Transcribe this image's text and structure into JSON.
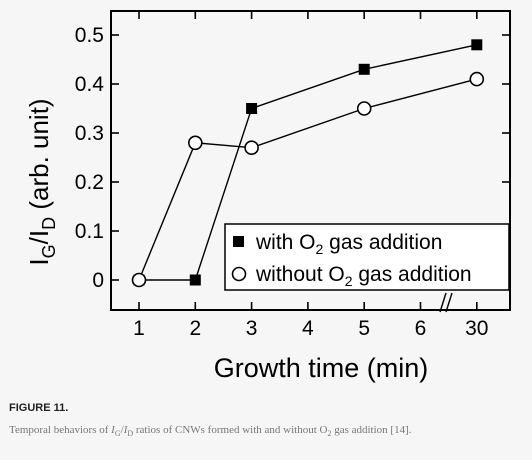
{
  "chart_data": {
    "type": "line",
    "categories": [
      "1",
      "2",
      "3",
      "4",
      "5",
      "6",
      "30"
    ],
    "xlabel": "Growth time (min)",
    "ylabel": {
      "main": "I",
      "sub1": "G",
      "mid": "/I",
      "sub2": "D",
      "unit": " (arb. unit)"
    },
    "ylim": [
      0,
      0.55
    ],
    "yticks": [
      0,
      0.1,
      0.2,
      0.3,
      0.4,
      0.5
    ],
    "ytick_labels": [
      "0",
      "0.1",
      "0.2",
      "0.3",
      "0.4",
      "0.5"
    ],
    "axis_break_between": [
      "6",
      "30"
    ],
    "legend_position": "lower-right",
    "series": [
      {
        "name": {
          "pre": "with O",
          "sub": "2",
          "post": " gas addition"
        },
        "marker": "filled-square",
        "points": [
          {
            "x": "1",
            "y": 0.0
          },
          {
            "x": "2",
            "y": 0.0
          },
          {
            "x": "3",
            "y": 0.35
          },
          {
            "x": "5",
            "y": 0.43
          },
          {
            "x": "30",
            "y": 0.48
          }
        ]
      },
      {
        "name": {
          "pre": "without O",
          "sub": "2",
          "post": " gas addition"
        },
        "marker": "open-circle",
        "points": [
          {
            "x": "1",
            "y": 0.0
          },
          {
            "x": "2",
            "y": 0.28
          },
          {
            "x": "3",
            "y": 0.27
          },
          {
            "x": "5",
            "y": 0.35
          },
          {
            "x": "30",
            "y": 0.41
          }
        ]
      }
    ]
  },
  "figure": {
    "label": "FIGURE 11.",
    "caption": {
      "t1": "Temporal behaviors of ",
      "i1": "I",
      "s1": "G",
      "m1": "/",
      "i2": "I",
      "s2": "D",
      "t2": " ratios of CNWs formed with and without O",
      "s3": "2",
      "t3": " gas addition [14]."
    }
  },
  "colors": {
    "background": "#f6f6f6",
    "ink": "#000000",
    "caption": "#777777"
  }
}
